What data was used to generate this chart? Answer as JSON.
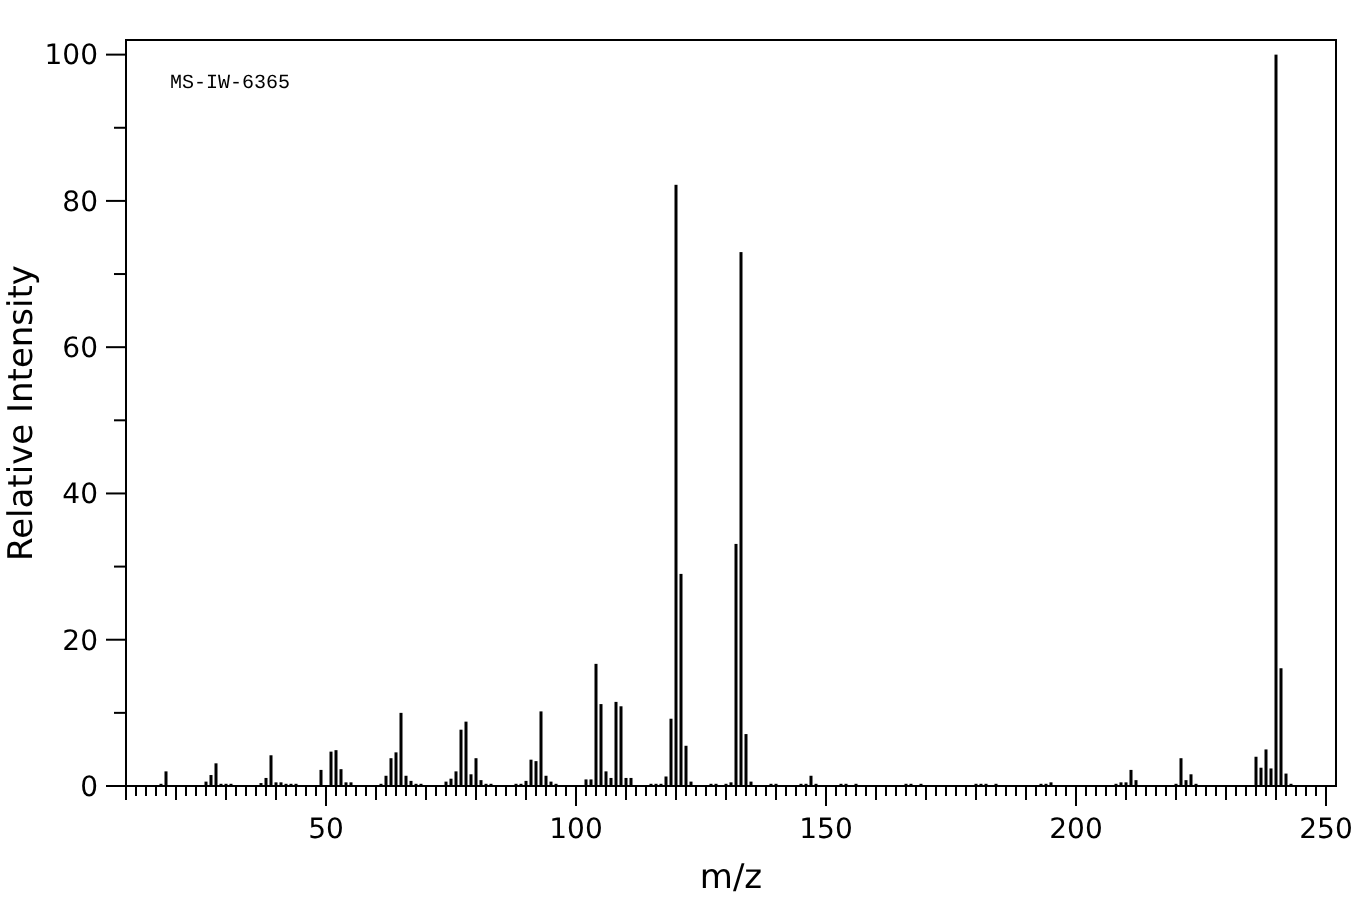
{
  "chart_data": {
    "type": "bar",
    "xlabel": "m/z",
    "ylabel": "Relative Intensity",
    "annotations": [
      "MS-IW-6365"
    ],
    "color": "#000000",
    "grid": false,
    "x": [
      17,
      18,
      26,
      27,
      28,
      29,
      30,
      31,
      37,
      38,
      39,
      40,
      41,
      42,
      43,
      44,
      49,
      51,
      52,
      53,
      54,
      55,
      61,
      62,
      63,
      64,
      65,
      66,
      67,
      68,
      69,
      74,
      75,
      76,
      77,
      78,
      79,
      80,
      81,
      82,
      83,
      88,
      89,
      90,
      91,
      92,
      93,
      94,
      95,
      96,
      102,
      103,
      104,
      105,
      106,
      107,
      108,
      109,
      110,
      111,
      115,
      116,
      117,
      118,
      119,
      120,
      121,
      122,
      123,
      127,
      128,
      130,
      131,
      132,
      133,
      134,
      135,
      139,
      140,
      145,
      146,
      147,
      148,
      153,
      154,
      156,
      166,
      167,
      169,
      180,
      181,
      182,
      184,
      193,
      194,
      195,
      208,
      209,
      210,
      211,
      212,
      220,
      221,
      222,
      223,
      224,
      236,
      237,
      238,
      239,
      240,
      241,
      242,
      243
    ],
    "values": [
      0.3,
      2.0,
      0.6,
      1.5,
      3.1,
      0.3,
      0.3,
      0.3,
      0.4,
      1.1,
      4.2,
      0.5,
      0.5,
      0.3,
      0.3,
      0.3,
      2.2,
      4.7,
      4.9,
      2.3,
      0.5,
      0.5,
      0.3,
      1.4,
      3.8,
      4.6,
      10.0,
      1.4,
      0.7,
      0.3,
      0.3,
      0.6,
      1.0,
      2.0,
      7.7,
      8.8,
      1.6,
      3.8,
      0.8,
      0.3,
      0.3,
      0.3,
      0.3,
      0.7,
      3.6,
      3.4,
      10.2,
      1.4,
      0.6,
      0.3,
      0.9,
      0.9,
      16.7,
      11.2,
      2.0,
      1.1,
      11.5,
      10.9,
      1.1,
      1.1,
      0.3,
      0.3,
      0.3,
      1.3,
      9.2,
      82.2,
      29.0,
      5.5,
      0.6,
      0.3,
      0.3,
      0.3,
      0.5,
      33.1,
      73.0,
      7.1,
      0.6,
      0.3,
      0.3,
      0.3,
      0.3,
      1.4,
      0.3,
      0.3,
      0.3,
      0.3,
      0.3,
      0.3,
      0.3,
      0.3,
      0.3,
      0.3,
      0.3,
      0.3,
      0.3,
      0.5,
      0.3,
      0.5,
      0.5,
      2.2,
      0.8,
      0.3,
      3.8,
      0.8,
      1.6,
      0.3,
      4.0,
      2.5,
      5.0,
      2.4,
      100,
      16.1,
      1.7,
      0.3
    ],
    "xlim": [
      10,
      252
    ],
    "ylim": [
      0,
      102
    ],
    "xticks": [
      {
        "value": 10,
        "label": null
      },
      {
        "value": 12,
        "label": null
      },
      {
        "value": 14,
        "label": null
      },
      {
        "value": 16,
        "label": null
      },
      {
        "value": 18,
        "label": null
      },
      {
        "value": 20,
        "label": null
      },
      {
        "value": 22,
        "label": null
      },
      {
        "value": 24,
        "label": null
      },
      {
        "value": 26,
        "label": null
      },
      {
        "value": 28,
        "label": null
      },
      {
        "value": 30,
        "label": null
      },
      {
        "value": 32,
        "label": null
      },
      {
        "value": 34,
        "label": null
      },
      {
        "value": 36,
        "label": null
      },
      {
        "value": 38,
        "label": null
      },
      {
        "value": 40,
        "label": null
      },
      {
        "value": 42,
        "label": null
      },
      {
        "value": 44,
        "label": null
      },
      {
        "value": 46,
        "label": null
      },
      {
        "value": 48,
        "label": null
      },
      50,
      {
        "value": 52,
        "label": null
      },
      {
        "value": 54,
        "label": null
      },
      {
        "value": 56,
        "label": null
      },
      {
        "value": 58,
        "label": null
      },
      {
        "value": 60,
        "label": null
      },
      {
        "value": 62,
        "label": null
      },
      {
        "value": 64,
        "label": null
      },
      {
        "value": 66,
        "label": null
      },
      {
        "value": 68,
        "label": null
      },
      {
        "value": 70,
        "label": null
      },
      {
        "value": 72,
        "label": null
      },
      {
        "value": 74,
        "label": null
      },
      {
        "value": 76,
        "label": null
      },
      {
        "value": 78,
        "label": null
      },
      {
        "value": 80,
        "label": null
      },
      {
        "value": 82,
        "label": null
      },
      {
        "value": 84,
        "label": null
      },
      {
        "value": 86,
        "label": null
      },
      {
        "value": 88,
        "label": null
      },
      {
        "value": 90,
        "label": null
      },
      {
        "value": 92,
        "label": null
      },
      {
        "value": 94,
        "label": null
      },
      {
        "value": 96,
        "label": null
      },
      {
        "value": 98,
        "label": null
      },
      100,
      {
        "value": 102,
        "label": null
      },
      {
        "value": 104,
        "label": null
      },
      {
        "value": 106,
        "label": null
      },
      {
        "value": 108,
        "label": null
      },
      {
        "value": 110,
        "label": null
      },
      {
        "value": 112,
        "label": null
      },
      {
        "value": 114,
        "label": null
      },
      {
        "value": 116,
        "label": null
      },
      {
        "value": 118,
        "label": null
      },
      {
        "value": 120,
        "label": null
      },
      {
        "value": 122,
        "label": null
      },
      {
        "value": 124,
        "label": null
      },
      {
        "value": 126,
        "label": null
      },
      {
        "value": 128,
        "label": null
      },
      {
        "value": 130,
        "label": null
      },
      {
        "value": 132,
        "label": null
      },
      {
        "value": 134,
        "label": null
      },
      {
        "value": 136,
        "label": null
      },
      {
        "value": 138,
        "label": null
      },
      {
        "value": 140,
        "label": null
      },
      {
        "value": 142,
        "label": null
      },
      {
        "value": 144,
        "label": null
      },
      {
        "value": 146,
        "label": null
      },
      {
        "value": 148,
        "label": null
      },
      150,
      {
        "value": 152,
        "label": null
      },
      {
        "value": 154,
        "label": null
      },
      {
        "value": 156,
        "label": null
      },
      {
        "value": 158,
        "label": null
      },
      {
        "value": 160,
        "label": null
      },
      {
        "value": 162,
        "label": null
      },
      {
        "value": 164,
        "label": null
      },
      {
        "value": 166,
        "label": null
      },
      {
        "value": 168,
        "label": null
      },
      {
        "value": 170,
        "label": null
      },
      {
        "value": 172,
        "label": null
      },
      {
        "value": 174,
        "label": null
      },
      {
        "value": 176,
        "label": null
      },
      {
        "value": 178,
        "label": null
      },
      {
        "value": 180,
        "label": null
      },
      {
        "value": 182,
        "label": null
      },
      {
        "value": 184,
        "label": null
      },
      {
        "value": 186,
        "label": null
      },
      {
        "value": 188,
        "label": null
      },
      {
        "value": 190,
        "label": null
      },
      {
        "value": 192,
        "label": null
      },
      {
        "value": 194,
        "label": null
      },
      {
        "value": 196,
        "label": null
      },
      {
        "value": 198,
        "label": null
      },
      200,
      {
        "value": 202,
        "label": null
      },
      {
        "value": 204,
        "label": null
      },
      {
        "value": 206,
        "label": null
      },
      {
        "value": 208,
        "label": null
      },
      {
        "value": 210,
        "label": null
      },
      {
        "value": 212,
        "label": null
      },
      {
        "value": 214,
        "label": null
      },
      {
        "value": 216,
        "label": null
      },
      {
        "value": 218,
        "label": null
      },
      {
        "value": 220,
        "label": null
      },
      {
        "value": 222,
        "label": null
      },
      {
        "value": 224,
        "label": null
      },
      {
        "value": 226,
        "label": null
      },
      {
        "value": 228,
        "label": null
      },
      {
        "value": 230,
        "label": null
      },
      {
        "value": 232,
        "label": null
      },
      {
        "value": 234,
        "label": null
      },
      {
        "value": 236,
        "label": null
      },
      {
        "value": 238,
        "label": null
      },
      {
        "value": 240,
        "label": null
      },
      {
        "value": 242,
        "label": null
      },
      {
        "value": 244,
        "label": null
      },
      {
        "value": 246,
        "label": null
      },
      {
        "value": 248,
        "label": null
      },
      250
    ],
    "yticks": [
      0,
      {
        "value": 10,
        "label": null
      },
      20,
      {
        "value": 30,
        "label": null
      },
      40,
      {
        "value": 50,
        "label": null
      },
      60,
      {
        "value": 70,
        "label": null
      },
      80,
      {
        "value": 90,
        "label": null
      },
      100
    ]
  }
}
